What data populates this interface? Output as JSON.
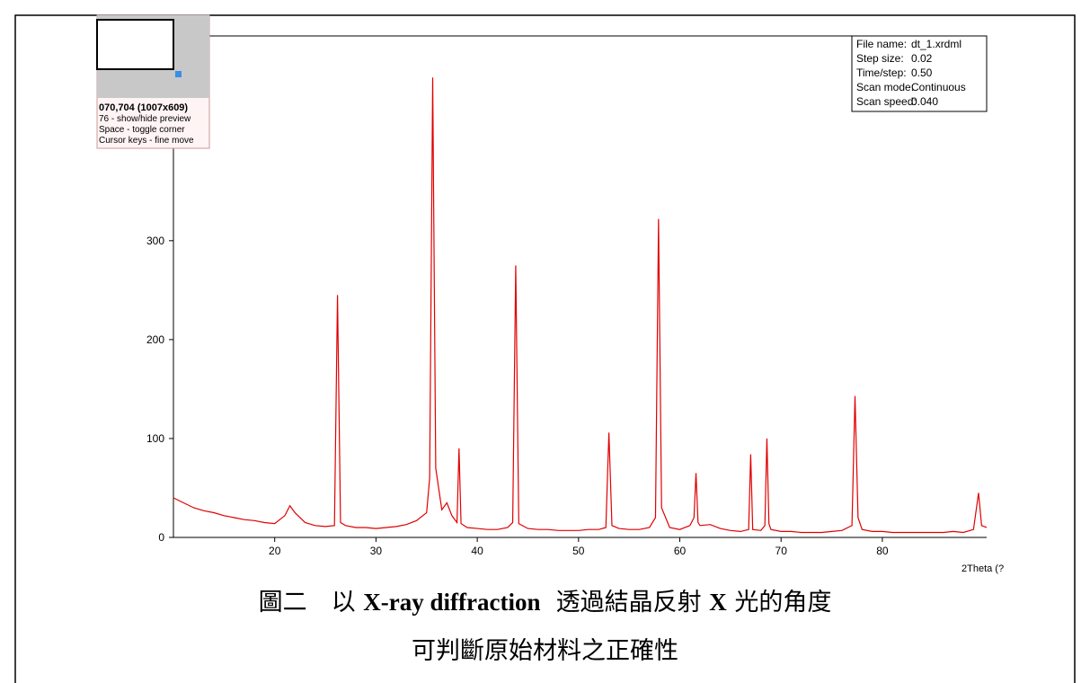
{
  "chart_data": {
    "type": "line",
    "x_label": "2Theta (?",
    "x": [
      10,
      11,
      12,
      13,
      14,
      15,
      16,
      17,
      18,
      19,
      20,
      21,
      21.5,
      22,
      23,
      24,
      25,
      25.9,
      26.2,
      26.5,
      27,
      28,
      29,
      30,
      31,
      32,
      33,
      34,
      35,
      35.3,
      35.6,
      35.9,
      36.5,
      37,
      37.5,
      38,
      38.2,
      38.4,
      39,
      40,
      41,
      42,
      43,
      43.5,
      43.8,
      44.1,
      45,
      46,
      47,
      48,
      49,
      50,
      51,
      52,
      52.7,
      53,
      53.3,
      54,
      55,
      56,
      57,
      57.6,
      57.9,
      58.2,
      59,
      60,
      61,
      61.4,
      61.6,
      61.8,
      62,
      63,
      64,
      65,
      66,
      66.8,
      67,
      67.2,
      68,
      68.4,
      68.6,
      68.8,
      69,
      70,
      71,
      72,
      73,
      74,
      75,
      76,
      77,
      77.3,
      77.6,
      78,
      79,
      80,
      81,
      82,
      83,
      84,
      85,
      86,
      87,
      88,
      89,
      89.5,
      89.8,
      90.3
    ],
    "values": [
      40,
      35,
      30,
      27,
      25,
      22,
      20,
      18,
      17,
      15,
      14,
      22,
      32,
      25,
      15,
      12,
      11,
      12,
      245,
      15,
      12,
      10,
      10,
      9,
      10,
      11,
      13,
      17,
      25,
      60,
      465,
      70,
      28,
      35,
      22,
      15,
      90,
      14,
      10,
      9,
      8,
      8,
      10,
      15,
      275,
      14,
      9,
      8,
      8,
      7,
      7,
      7,
      8,
      8,
      10,
      106,
      12,
      9,
      8,
      8,
      10,
      20,
      322,
      30,
      10,
      8,
      12,
      20,
      65,
      15,
      12,
      13,
      9,
      7,
      6,
      8,
      84,
      8,
      7,
      12,
      100,
      14,
      8,
      6,
      6,
      5,
      5,
      5,
      6,
      7,
      12,
      143,
      20,
      8,
      6,
      6,
      5,
      5,
      5,
      5,
      5,
      5,
      6,
      5,
      8,
      45,
      12,
      10
    ],
    "color": "#e00000",
    "xlim": [
      10,
      90.3
    ],
    "xticks": [
      20,
      30,
      40,
      50,
      60,
      70,
      80
    ],
    "ylim": [
      0,
      507
    ],
    "yticks": [
      0,
      100,
      200,
      300
    ],
    "info_box": {
      "rows": [
        [
          "File name:",
          "dt_1.xrdml"
        ],
        [
          "Step size:",
          "0.02"
        ],
        [
          "Time/step:",
          "0.50"
        ],
        [
          "Scan mode:",
          "Continuous"
        ],
        [
          "Scan speed:",
          "0.040"
        ]
      ]
    }
  },
  "preview_overlay": {
    "lines": [
      "070,704 (1007x609)",
      "76 - show/hide preview",
      "Space - toggle corner",
      "Cursor keys - fine move"
    ]
  },
  "caption": {
    "line1": [
      "圖二",
      "以",
      "X-ray diffraction",
      "透過結晶反射",
      "X",
      "光的角度"
    ],
    "line2": "可判斷原始材料之正確性"
  }
}
